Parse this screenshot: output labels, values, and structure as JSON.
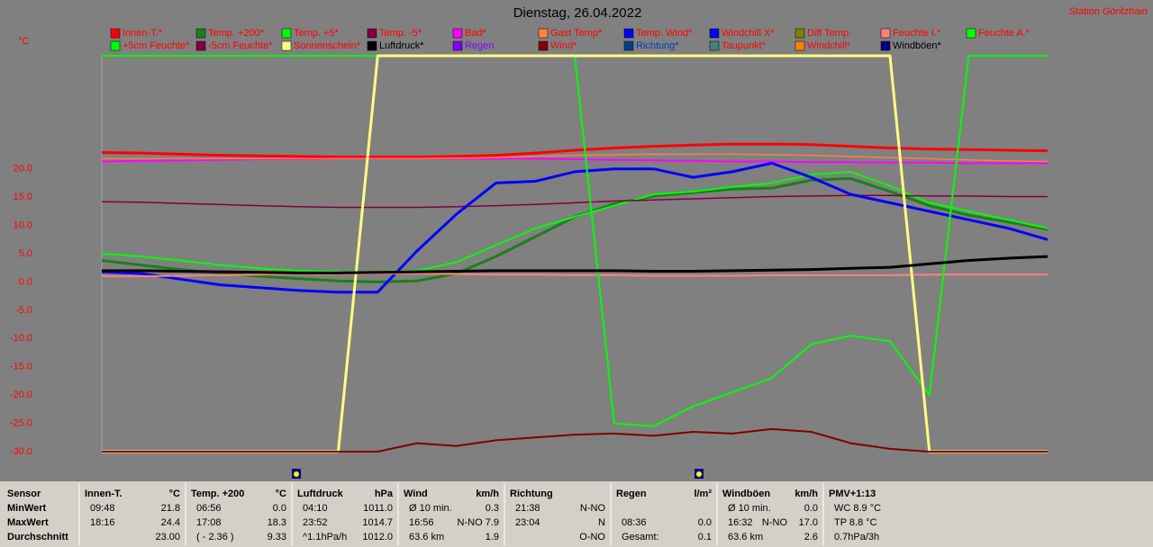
{
  "chart_data": {
    "type": "line",
    "title": "Dienstag, 26.04.2022",
    "station": "Station Göritzhain",
    "y_unit": "°C",
    "ylim": [
      -30,
      40
    ],
    "yticks": [
      {
        "value": 20,
        "label": "20.0"
      },
      {
        "value": 15,
        "label": "15.0"
      },
      {
        "value": 10,
        "label": "10.0"
      },
      {
        "value": 5,
        "label": "5.0"
      },
      {
        "value": 0,
        "label": "0.0"
      },
      {
        "value": -5,
        "label": "-5.0"
      },
      {
        "value": -10,
        "label": "-10.0"
      },
      {
        "value": -15,
        "label": "-15.0"
      },
      {
        "value": -20,
        "label": "-20.0"
      },
      {
        "value": -25,
        "label": "-25.0"
      },
      {
        "value": -30,
        "label": "-30.0"
      }
    ],
    "legend_text_color": "#ff0000",
    "series": [
      {
        "name": "Innen-T.*",
        "color": "#ff0000",
        "width": 3,
        "values": [
          22.9,
          22.8,
          22.6,
          22.4,
          22.3,
          22.2,
          22.1,
          22.1,
          22.1,
          22.2,
          22.4,
          22.8,
          23.3,
          23.7,
          24.0,
          24.2,
          24.4,
          24.4,
          24.3,
          24.0,
          23.7,
          23.5,
          23.4,
          23.3,
          23.2
        ]
      },
      {
        "name": "Temp. +200*",
        "color": "#1a801a",
        "width": 3,
        "values": [
          3.8,
          3.0,
          2.2,
          1.6,
          1.0,
          0.6,
          0.2,
          0.0,
          0.2,
          1.5,
          4.5,
          8.0,
          11.5,
          13.8,
          15.2,
          15.8,
          16.4,
          16.6,
          18.0,
          18.3,
          16.0,
          13.5,
          11.8,
          10.6,
          9.3
        ]
      },
      {
        "name": "Temp. +5*",
        "color": "#00ff00",
        "width": 2,
        "values": [
          5.0,
          4.5,
          3.8,
          3.0,
          2.4,
          2.0,
          1.8,
          1.8,
          2.0,
          3.5,
          6.5,
          9.5,
          11.5,
          13.5,
          15.5,
          16.0,
          16.8,
          17.5,
          19.0,
          19.5,
          17.0,
          14.0,
          12.5,
          11.0,
          9.5
        ]
      },
      {
        "name": "Temp. -5*",
        "color": "#800040",
        "width": 1.5,
        "values": [
          14.2,
          14.1,
          13.9,
          13.7,
          13.5,
          13.3,
          13.2,
          13.2,
          13.2,
          13.3,
          13.5,
          13.7,
          14.0,
          14.3,
          14.5,
          14.7,
          14.9,
          15.1,
          15.2,
          15.3,
          15.3,
          15.2,
          15.2,
          15.1,
          15.1
        ]
      },
      {
        "name": "Bad*",
        "color": "#ff00ff",
        "width": 2,
        "values": [
          21.3,
          21.4,
          21.5,
          21.6,
          21.7,
          21.7,
          21.8,
          21.8,
          21.8,
          21.8,
          21.8,
          21.8,
          21.7,
          21.6,
          21.5,
          21.4,
          21.3,
          21.3,
          21.2,
          21.2,
          21.1,
          21.1,
          21.0,
          21.0,
          21.0
        ]
      },
      {
        "name": "Gast Temp*",
        "color": "#ff8040",
        "width": 1.5,
        "values": [
          21.8,
          21.8,
          21.8,
          21.8,
          21.8,
          21.8,
          21.8,
          21.8,
          21.8,
          21.9,
          22.0,
          22.2,
          22.4,
          22.5,
          22.6,
          22.6,
          22.6,
          22.5,
          22.4,
          22.2,
          22.0,
          21.8,
          21.6,
          21.4,
          21.3
        ]
      },
      {
        "name": "Temp. Wind*",
        "color": "#0000ff"
      },
      {
        "name": "Windchill X*",
        "color": "#0000ff",
        "width": 3,
        "values": [
          1.8,
          1.5,
          0.5,
          -0.5,
          -1.0,
          -1.5,
          -1.8,
          -1.8,
          5.5,
          12.0,
          17.5,
          17.8,
          19.5,
          20.0,
          20.0,
          18.5,
          19.5,
          21.0,
          18.5,
          15.5,
          14.0,
          12.5,
          11.0,
          9.5,
          7.5
        ]
      },
      {
        "name": "Diff Temp.",
        "color": "#808000"
      },
      {
        "name": "Feuchte I.*",
        "color": "#ff8080",
        "width": 2,
        "values": [
          1.0,
          1.0,
          1.1,
          1.2,
          1.3,
          1.4,
          1.4,
          1.5,
          1.5,
          1.4,
          1.3,
          1.3,
          1.2,
          1.2,
          1.1,
          1.1,
          1.1,
          1.2,
          1.2,
          1.2,
          1.2,
          1.3,
          1.3,
          1.3,
          1.3
        ]
      },
      {
        "name": "Feuchte A.*",
        "color": "#00ff00",
        "width": 2,
        "values": [
          40,
          40,
          40,
          40,
          40,
          40,
          40,
          40,
          40,
          40,
          40,
          40,
          40,
          -25,
          -25.5,
          -22,
          -19.5,
          -17,
          -11,
          -9.5,
          -10.5,
          -20,
          40,
          40,
          40
        ]
      },
      {
        "name": "+5cm Feuchte*",
        "color": "#00ff00"
      },
      {
        "name": "-5cm Feuchte*",
        "color": "#800040"
      },
      {
        "name": "Sonnenschein*",
        "color": "#ffff80",
        "width": 3,
        "values": [
          -30,
          -30,
          -30,
          -30,
          -30,
          -30,
          -30,
          40,
          40,
          40,
          40,
          40,
          40,
          40,
          40,
          40,
          40,
          40,
          40,
          40,
          40,
          -30,
          -30,
          -30,
          -30
        ]
      },
      {
        "name": "Luftdruck*",
        "color": "#000000",
        "label_color": "#000000",
        "width": 3,
        "values": [
          2,
          2,
          1.9,
          1.8,
          1.7,
          1.6,
          1.6,
          1.7,
          1.8,
          1.9,
          2,
          2,
          2,
          2,
          1.9,
          1.9,
          2,
          2.1,
          2.2,
          2.4,
          2.6,
          3.2,
          3.8,
          4.2,
          4.5
        ]
      },
      {
        "name": "Regen",
        "color": "#8000ff",
        "label_color": "#8000ff"
      },
      {
        "name": "Wind*",
        "color": "#800000",
        "width": 2,
        "values": [
          -30,
          -30,
          -30,
          -30,
          -30,
          -30,
          -30,
          -30,
          -28.5,
          -29,
          -28,
          -27.5,
          -27,
          -26.8,
          -27.2,
          -26.5,
          -26.8,
          -26,
          -26.5,
          -28.5,
          -29.5,
          -30,
          -30,
          -30,
          -30
        ]
      },
      {
        "name": "Richtung*",
        "color": "#004080",
        "label_color": "#0040c0"
      },
      {
        "name": "Taupunkt*",
        "color": "#408080"
      },
      {
        "name": "Windchill*",
        "color": "#ff8000"
      },
      {
        "name": "Windböen*",
        "color": "#000080",
        "label_color": "#000000"
      }
    ]
  },
  "table": {
    "row_labels": [
      "Sensor",
      "MinWert",
      "MaxWert",
      "Durchschnitt"
    ],
    "sections": [
      {
        "name": "Innen-T.",
        "unit": "°C",
        "rows": [
          {
            "l": "09:48",
            "r": "21.8"
          },
          {
            "l": "18:16",
            "r": "24.4"
          },
          {
            "r": "23.00"
          }
        ]
      },
      {
        "name": "Temp. +200",
        "unit": "°C",
        "rows": [
          {
            "l": "06:56",
            "r": "0.0"
          },
          {
            "l": "17:08",
            "r": "18.3"
          },
          {
            "l": "( - 2.36 )",
            "r": "9.33"
          }
        ]
      },
      {
        "name": "Luftdruck",
        "unit": "hPa",
        "rows": [
          {
            "l": "04:10",
            "r": "1011.0"
          },
          {
            "l": "23:52",
            "r": "1014.7"
          },
          {
            "l": "^1.1hPa/h",
            "r": "1012.0"
          }
        ]
      },
      {
        "name": "Wind",
        "unit": "km/h",
        "rows": [
          {
            "l": "Ø 10 min.",
            "r": "0.3"
          },
          {
            "l": "16:56",
            "r": "N-NO 7.9"
          },
          {
            "l": "63.6 km",
            "r": "1.9"
          }
        ]
      },
      {
        "name": "Richtung",
        "rows": [
          {
            "l": "21:38",
            "r": "N-NO"
          },
          {
            "l": "23:04",
            "r": "N"
          },
          {
            "r": "O-NO"
          }
        ]
      },
      {
        "name": "Regen",
        "unit": "l/m²",
        "rows": [
          {},
          {
            "l": "08:36",
            "r": "0.0"
          },
          {
            "l": "Gesamt:",
            "r": "0.1"
          }
        ]
      },
      {
        "name": "Windböen",
        "unit": "km/h",
        "rows": [
          {
            "l": "Ø 10 min.",
            "r": "0.0"
          },
          {
            "l": "16:32",
            "m": "N-NO",
            "r": "17.0"
          },
          {
            "l": "63.6 km",
            "r": "2.6"
          }
        ]
      },
      {
        "name": "PMV+1:13",
        "rows": [
          {
            "l": "WC 8.9 °C"
          },
          {
            "l": "TP 8.8 °C"
          },
          {
            "l": "0.7hPa/3h"
          }
        ]
      }
    ]
  }
}
